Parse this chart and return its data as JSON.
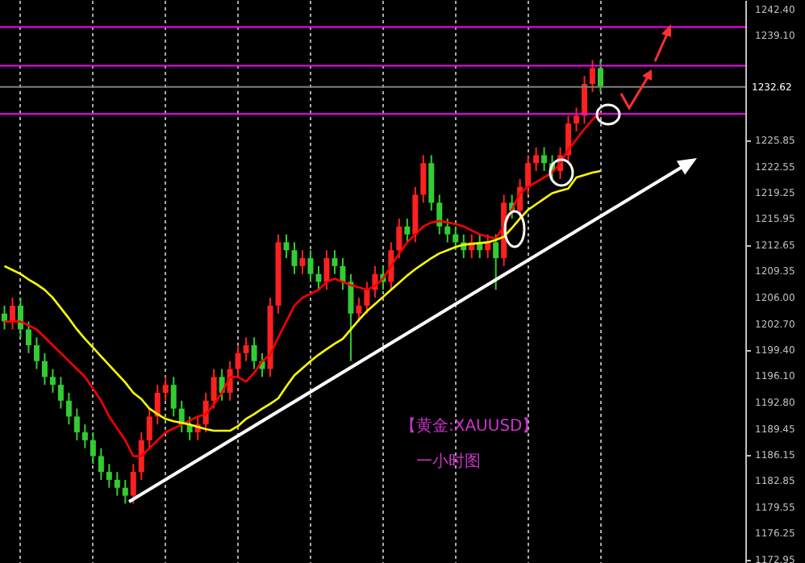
{
  "chart_data": {
    "type": "candlestick",
    "categories": [
      null,
      null,
      null,
      null,
      null,
      null,
      null,
      null,
      null,
      null,
      null,
      null,
      null,
      null,
      null,
      null,
      null,
      null,
      null,
      null,
      null,
      null,
      null,
      null,
      null,
      null,
      null,
      null,
      null,
      null,
      null,
      null,
      null,
      null,
      null,
      null,
      null,
      null,
      null,
      null,
      null,
      null,
      null,
      null,
      null,
      null,
      null,
      null,
      null,
      null,
      null,
      null,
      null,
      null,
      null,
      null,
      null,
      null,
      null,
      null,
      null,
      null,
      null,
      null,
      null,
      null,
      null,
      null,
      null,
      null,
      null,
      null,
      null,
      null,
      null
    ],
    "ohlc": [
      [
        1204,
        1205,
        1202,
        1203
      ],
      [
        1203,
        1206,
        1202,
        1205
      ],
      [
        1205,
        1206,
        1201,
        1202
      ],
      [
        1202,
        1203,
        1199,
        1200
      ],
      [
        1200,
        1201,
        1197,
        1198
      ],
      [
        1198,
        1199,
        1195,
        1196
      ],
      [
        1196,
        1197,
        1194,
        1195
      ],
      [
        1195,
        1196,
        1192,
        1193
      ],
      [
        1193,
        1194,
        1190,
        1191
      ],
      [
        1191,
        1192,
        1188,
        1189
      ],
      [
        1189,
        1190,
        1187,
        1188
      ],
      [
        1188,
        1189,
        1185,
        1186
      ],
      [
        1186,
        1187,
        1183,
        1184
      ],
      [
        1184,
        1185,
        1182,
        1183
      ],
      [
        1183,
        1184,
        1181,
        1182
      ],
      [
        1182,
        1183,
        1180,
        1181
      ],
      [
        1181,
        1185,
        1180,
        1184
      ],
      [
        1184,
        1189,
        1183,
        1188
      ],
      [
        1188,
        1192,
        1187,
        1191
      ],
      [
        1191,
        1195,
        1190,
        1194
      ],
      [
        1194,
        1196,
        1193,
        1195
      ],
      [
        1195,
        1196,
        1191,
        1192
      ],
      [
        1192,
        1193,
        1189,
        1190
      ],
      [
        1190,
        1191,
        1188,
        1189
      ],
      [
        1189,
        1191,
        1188,
        1190
      ],
      [
        1190,
        1194,
        1189,
        1193
      ],
      [
        1193,
        1197,
        1192,
        1196
      ],
      [
        1196,
        1197,
        1193,
        1194
      ],
      [
        1194,
        1198,
        1193,
        1197
      ],
      [
        1197,
        1200,
        1196,
        1199
      ],
      [
        1199,
        1201,
        1198,
        1200
      ],
      [
        1200,
        1201,
        1197,
        1198
      ],
      [
        1198,
        1199,
        1196,
        1197
      ],
      [
        1197,
        1206,
        1196,
        1205
      ],
      [
        1205,
        1214,
        1204,
        1213
      ],
      [
        1213,
        1214,
        1211,
        1212
      ],
      [
        1212,
        1213,
        1209,
        1210
      ],
      [
        1210,
        1212,
        1209,
        1211
      ],
      [
        1211,
        1212,
        1208,
        1209
      ],
      [
        1209,
        1210,
        1207,
        1208
      ],
      [
        1208,
        1212,
        1207,
        1211
      ],
      [
        1211,
        1212,
        1209,
        1210
      ],
      [
        1210,
        1211,
        1207,
        1208
      ],
      [
        1208,
        1209,
        1198,
        1204
      ],
      [
        1204,
        1206,
        1203,
        1205
      ],
      [
        1205,
        1208,
        1204,
        1207
      ],
      [
        1207,
        1210,
        1206,
        1209
      ],
      [
        1209,
        1210,
        1207,
        1208
      ],
      [
        1208,
        1213,
        1207,
        1212
      ],
      [
        1212,
        1216,
        1211,
        1215
      ],
      [
        1215,
        1216,
        1213,
        1214
      ],
      [
        1214,
        1220,
        1213,
        1219
      ],
      [
        1219,
        1224,
        1218,
        1223
      ],
      [
        1223,
        1224,
        1217,
        1218
      ],
      [
        1218,
        1219,
        1214,
        1215
      ],
      [
        1215,
        1216,
        1213,
        1214
      ],
      [
        1214,
        1215,
        1212,
        1213
      ],
      [
        1213,
        1214,
        1211,
        1212
      ],
      [
        1212,
        1214,
        1211,
        1213
      ],
      [
        1213,
        1214,
        1211,
        1212
      ],
      [
        1212,
        1214,
        1211,
        1213
      ],
      [
        1213,
        1214,
        1207,
        1211
      ],
      [
        1211,
        1219,
        1210,
        1218
      ],
      [
        1218,
        1219,
        1216,
        1217
      ],
      [
        1217,
        1221,
        1216,
        1220
      ],
      [
        1220,
        1224,
        1219,
        1223
      ],
      [
        1223,
        1225,
        1222,
        1224
      ],
      [
        1224,
        1225,
        1222,
        1223
      ],
      [
        1223,
        1224,
        1221,
        1222
      ],
      [
        1222,
        1225,
        1221,
        1224
      ],
      [
        1224,
        1229,
        1223,
        1228
      ],
      [
        1228,
        1230,
        1227,
        1229
      ],
      [
        1229,
        1234,
        1228,
        1233
      ],
      [
        1233,
        1236,
        1232,
        1235
      ],
      [
        1235,
        1236,
        1232,
        1232.6
      ]
    ],
    "colors": [
      "#33cc33",
      "#ff2020",
      "#33cc33",
      "#33cc33",
      "#33cc33",
      "#33cc33",
      "#33cc33",
      "#33cc33",
      "#33cc33",
      "#33cc33",
      "#33cc33",
      "#33cc33",
      "#33cc33",
      "#33cc33",
      "#33cc33",
      "#33cc33",
      "#ff2020",
      "#ff2020",
      "#ff2020",
      "#ff2020",
      "#ff2020",
      "#33cc33",
      "#33cc33",
      "#33cc33",
      "#ff2020",
      "#ff2020",
      "#ff2020",
      "#33cc33",
      "#ff2020",
      "#ff2020",
      "#ff2020",
      "#33cc33",
      "#33cc33",
      "#ff2020",
      "#ff2020",
      "#33cc33",
      "#33cc33",
      "#ff2020",
      "#33cc33",
      "#33cc33",
      "#ff2020",
      "#33cc33",
      "#33cc33",
      "#33cc33",
      "#ff2020",
      "#ff2020",
      "#ff2020",
      "#33cc33",
      "#ff2020",
      "#ff2020",
      "#33cc33",
      "#ff2020",
      "#ff2020",
      "#33cc33",
      "#33cc33",
      "#33cc33",
      "#33cc33",
      "#33cc33",
      "#ff2020",
      "#33cc33",
      "#ff2020",
      "#33cc33",
      "#ff2020",
      "#33cc33",
      "#ff2020",
      "#ff2020",
      "#ff2020",
      "#33cc33",
      "#33cc33",
      "#ff2020",
      "#ff2020",
      "#ff2020",
      "#ff2020",
      "#ff2020",
      "#33cc33"
    ],
    "series": [
      {
        "type": "line",
        "color": "#ff0000",
        "values": [
          1203,
          1203,
          1203,
          1202.5,
          1202,
          1201,
          1200,
          1199,
          1198,
          1197,
          1196,
          1194.5,
          1193,
          1191,
          1189.5,
          1188,
          1186,
          1186,
          1187,
          1188,
          1189,
          1189.5,
          1190,
          1190.5,
          1191,
          1191.3,
          1192.5,
          1194,
          1196,
          1196,
          1195.4,
          1196.5,
          1198,
          1198.8,
          1201,
          1203,
          1205,
          1206,
          1206.5,
          1207,
          1208,
          1208.4,
          1208,
          1207.6,
          1207.3,
          1207,
          1207.5,
          1208.4,
          1210,
          1211.6,
          1213,
          1214,
          1215,
          1215.5,
          1215.7,
          1215.5,
          1215.3,
          1215,
          1214.5,
          1214,
          1213.7,
          1213.5,
          1215,
          1217.1,
          1219.2,
          1220,
          1220.6,
          1221.2,
          1221.8,
          1223,
          1224.7,
          1226,
          1227.3,
          1228.5,
          1229.4
        ]
      },
      {
        "type": "line",
        "color": "#ffff00",
        "values": [
          1210,
          1209.5,
          1209,
          1208.3,
          1207.7,
          1207,
          1206,
          1204.7,
          1203.4,
          1202,
          1200.8,
          1199.7,
          1198.6,
          1197.5,
          1196.4,
          1195.3,
          1194,
          1193.2,
          1192,
          1191.3,
          1190.7,
          1190.4,
          1190.2,
          1190,
          1189.7,
          1189.4,
          1189.2,
          1189.2,
          1189.2,
          1189.8,
          1190.7,
          1191.3,
          1192,
          1192.6,
          1193.3,
          1194.8,
          1196.2,
          1197.1,
          1198,
          1198.8,
          1199.5,
          1200.2,
          1200.8,
          1202,
          1203.2,
          1204.3,
          1205.2,
          1206.1,
          1207,
          1207.9,
          1208.8,
          1209.6,
          1210.3,
          1211,
          1211.6,
          1212,
          1212.4,
          1212.7,
          1212.8,
          1212.9,
          1213,
          1213.3,
          1213.7,
          1214.8,
          1216,
          1217.1,
          1217.8,
          1218.5,
          1219.2,
          1219.5,
          1219.8,
          1221.2,
          1221.5,
          1221.8,
          1222
        ]
      }
    ],
    "ylim": [
      1172.5,
      1243.6
    ],
    "yticks": [
      {
        "value": 1242.4,
        "label": "1242.40"
      },
      {
        "value": 1239.1,
        "label": "1239.10"
      },
      {
        "value": 1225.85,
        "label": "1225.85"
      },
      {
        "value": 1222.55,
        "label": "1222.55"
      },
      {
        "value": 1219.25,
        "label": "1219.25"
      },
      {
        "value": 1215.95,
        "label": "1215.95"
      },
      {
        "value": 1212.65,
        "label": "1212.65"
      },
      {
        "value": 1209.35,
        "label": "1209.35"
      },
      {
        "value": 1206,
        "label": "1206.00"
      },
      {
        "value": 1202.7,
        "label": "1202.70"
      },
      {
        "value": 1199.4,
        "label": "1199.40"
      },
      {
        "value": 1196.1,
        "label": "1196.10"
      },
      {
        "value": 1192.8,
        "label": "1192.80"
      },
      {
        "value": 1189.45,
        "label": "1189.45"
      },
      {
        "value": 1186.15,
        "label": "1186.15"
      },
      {
        "value": 1182.85,
        "label": "1182.85"
      },
      {
        "value": 1179.55,
        "label": "1179.55"
      },
      {
        "value": 1176.25,
        "label": "1176.25"
      },
      {
        "value": 1172.95,
        "label": "1172.95"
      }
    ],
    "ref_lines": [
      {
        "axis": "y",
        "value": 1240.2,
        "color": "#ff00ff"
      },
      {
        "axis": "y",
        "value": 1235.3,
        "color": "#ff00ff"
      },
      {
        "axis": "y",
        "value": 1232.62,
        "label": "1232.62",
        "color": "#808080"
      },
      {
        "axis": "y",
        "value": 1229.2,
        "color": "#ff00ff"
      }
    ],
    "annotations": [
      "【黄金:XAUUSD】",
      "一小时图"
    ],
    "grid": "x",
    "tick_labels": "y"
  }
}
